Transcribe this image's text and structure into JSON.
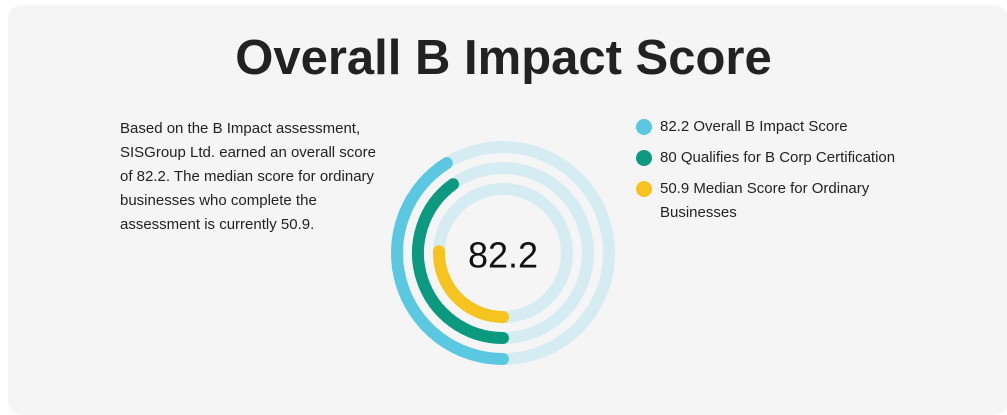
{
  "page": {
    "title": "Overall B Impact Score",
    "description": "Based on the B Impact assessment, SISGroup Ltd. earned an overall score of 82.2. The median score for ordinary businesses who complete the assessment is currently 50.9."
  },
  "colors": {
    "track": "#d6ecf3",
    "overall": "#5bc8e2",
    "qualifies": "#0b9a80",
    "median": "#f7c31d"
  },
  "chart_data": {
    "type": "radial-bar",
    "title": "Overall B Impact Score",
    "center_label": "82.2",
    "max": 200,
    "start_angle_deg": 180,
    "direction": "clockwise",
    "series": [
      {
        "name": "82.2 Overall B Impact Score",
        "value": 82.2,
        "color": "#5bc8e2"
      },
      {
        "name": "80 Qualifies for B Corp Certification",
        "value": 80,
        "color": "#0b9a80"
      },
      {
        "name": "50.9 Median Score for Ordinary Businesses",
        "value": 50.9,
        "color": "#f7c31d"
      }
    ],
    "legend": [
      {
        "label": "82.2 Overall B Impact Score",
        "color": "#5bc8e2"
      },
      {
        "label": "80 Qualifies for B Corp Certification",
        "color": "#0b9a80"
      },
      {
        "label": "50.9 Median Score for Ordinary Businesses",
        "color": "#f7c31d"
      }
    ],
    "legend_position": "right"
  }
}
